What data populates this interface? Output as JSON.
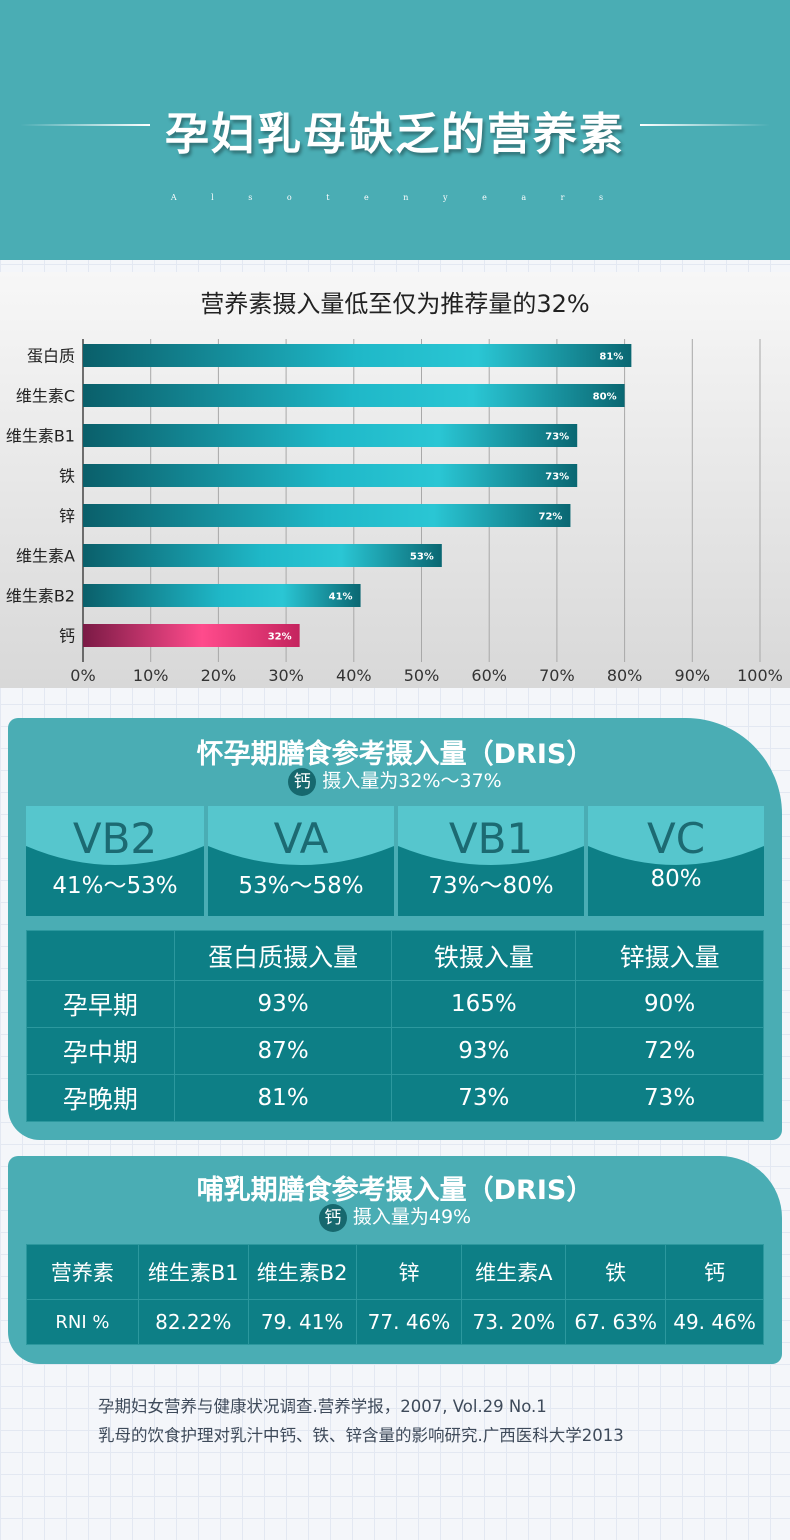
{
  "header": {
    "title": "孕妇乳母缺乏的营养素",
    "subtitle": "A l s o t e n   y e a r s"
  },
  "chart_data": {
    "type": "bar",
    "orientation": "horizontal",
    "title": "营养素摄入量低至仅为推荐量的32%",
    "categories": [
      "蛋白质",
      "维生素C",
      "维生素B1",
      "铁",
      "锌",
      "维生素A",
      "维生素B2",
      "钙"
    ],
    "values": [
      81,
      80,
      73,
      73,
      72,
      53,
      41,
      32
    ],
    "value_labels": [
      "81%",
      "80%",
      "73%",
      "73%",
      "72%",
      "53%",
      "41%",
      "32%"
    ],
    "xlim": [
      0,
      100
    ],
    "xticks": [
      "0%",
      "10%",
      "20%",
      "30%",
      "40%",
      "50%",
      "60%",
      "70%",
      "80%",
      "90%",
      "100%"
    ],
    "xlabel": "",
    "ylabel": "",
    "grid": "vertical",
    "colors": {
      "default": "#1fb8c8",
      "highlight": "#ff4b8c",
      "highlight_category": "钙"
    }
  },
  "pregnancy": {
    "title": "怀孕期膳食参考摄入量（DRIS）",
    "calcium_badge": "钙",
    "calcium_text": "摄入量为32%～37%",
    "vitamins": [
      {
        "name": "VB2",
        "range": "41%～53%"
      },
      {
        "name": "VA",
        "range": "53%～58%"
      },
      {
        "name": "VB1",
        "range": "73%～80%"
      },
      {
        "name": "VC",
        "range": "80%"
      }
    ],
    "table": {
      "headers": [
        "",
        "蛋白质摄入量",
        "铁摄入量",
        "锌摄入量"
      ],
      "rows": [
        [
          "孕早期",
          "93%",
          "165%",
          "90%"
        ],
        [
          "孕中期",
          "87%",
          "93%",
          "72%"
        ],
        [
          "孕晚期",
          "81%",
          "73%",
          "73%"
        ]
      ]
    }
  },
  "lactation": {
    "title": "哺乳期膳食参考摄入量（DRIS）",
    "calcium_badge": "钙",
    "calcium_text": "摄入量为49%",
    "table": {
      "headers": [
        "营养素",
        "维生素B1",
        "维生素B2",
        "锌",
        "维生素A",
        "铁",
        "钙"
      ],
      "row": [
        "RNI %",
        "82.22%",
        "79. 41%",
        "77. 46%",
        "73. 20%",
        "67. 63%",
        "49. 46%"
      ]
    }
  },
  "references": [
    "孕期妇女营养与健康状况调查.营养学报，2007, Vol.29 No.1",
    "乳母的饮食护理对乳汁中钙、铁、锌含量的影响研究.广西医科大学2013"
  ]
}
